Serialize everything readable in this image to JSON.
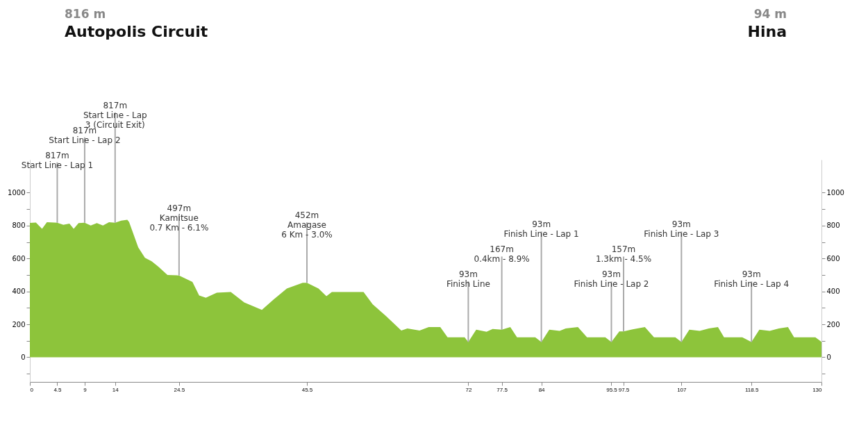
{
  "chart_data": {
    "type": "area",
    "color": "#8dc43b",
    "x": [
      0,
      1,
      2,
      2.8,
      4,
      4.5,
      5.5,
      6.5,
      7.2,
      8,
      9,
      10,
      11,
      12,
      13,
      14,
      15,
      16,
      16.3,
      17.8,
      18.9,
      20,
      21.1,
      22.6,
      24.5,
      26.7,
      27.8,
      28.9,
      30.7,
      33,
      35.2,
      38.1,
      40,
      42.2,
      44.8,
      45.5,
      47.4,
      48.7,
      49.6,
      52.2,
      54.8,
      56.3,
      58.5,
      61,
      62,
      64,
      65.5,
      67.4,
      68.6,
      71.4,
      72,
      73.3,
      75,
      76,
      77.5,
      78.9,
      80,
      83,
      84,
      85.3,
      87,
      88,
      90,
      91.5,
      94.5,
      95.5,
      96.8,
      97.5,
      99,
      101,
      102.5,
      106,
      107,
      108.3,
      110,
      111.5,
      113,
      114,
      117,
      118.5,
      119.8,
      121.5,
      123,
      124.5,
      125.5,
      129,
      130
    ],
    "values": [
      816,
      818,
      780,
      820,
      818,
      817,
      805,
      812,
      780,
      815,
      817,
      800,
      815,
      800,
      820,
      817,
      830,
      835,
      821,
      667,
      604,
      583,
      550,
      500,
      497,
      458,
      375,
      362,
      392,
      396,
      333,
      288,
      350,
      417,
      452,
      452,
      417,
      371,
      396,
      396,
      396,
      321,
      250,
      162,
      175,
      162,
      183,
      183,
      121,
      121,
      93,
      167,
      155,
      172,
      167,
      183,
      121,
      121,
      93,
      167,
      160,
      175,
      183,
      121,
      121,
      93,
      157,
      157,
      170,
      183,
      121,
      121,
      93,
      167,
      160,
      175,
      183,
      121,
      121,
      93,
      167,
      160,
      175,
      183,
      121,
      121,
      94
    ],
    "xlim": [
      0,
      130
    ],
    "xticks": [
      0,
      4.5,
      9,
      14,
      24.5,
      45.5,
      72,
      77.5,
      84,
      95.5,
      97.5,
      107,
      118.5,
      130
    ],
    "ylim": [
      -150,
      1200
    ],
    "yticks": [
      {
        "value": -100,
        "label": null
      },
      0,
      {
        "value": 100,
        "label": null
      },
      200,
      {
        "value": 300,
        "label": null
      },
      400,
      {
        "value": 500,
        "label": null
      },
      600,
      {
        "value": 700,
        "label": null
      },
      800,
      {
        "value": 900,
        "label": null
      },
      1000
    ],
    "y2lim": [
      -150,
      1200
    ],
    "y2ticks": [
      {
        "value": -100,
        "label": null
      },
      0,
      {
        "value": 100,
        "label": null
      },
      200,
      {
        "value": 300,
        "label": null
      },
      400,
      {
        "value": 500,
        "label": null
      },
      600,
      {
        "value": 700,
        "label": null
      },
      800,
      {
        "value": 900,
        "label": null
      },
      1000
    ],
    "grid": false,
    "annotations": [
      "816 m",
      "Autopolis Circuit",
      "94 m",
      "Hina",
      {
        "text": "817m\nStart Line - Lap 1",
        "x": 4.5,
        "y": 817
      },
      {
        "text": "817m\nStart Line - Lap 2",
        "x": 9,
        "y": 817
      },
      {
        "text": "817m\nStart Line - Lap\n3 (Circuit Exit)",
        "x": 14,
        "y": 817
      },
      {
        "text": "497m\nKamitsue\n0.7 Km - 6.1%",
        "x": 24.5,
        "y": 497
      },
      {
        "text": "452m\nAmagase\n6 Km - 3.0%",
        "x": 45.5,
        "y": 452
      },
      {
        "text": "93m\nFinish Line",
        "x": 72,
        "y": 93
      },
      {
        "text": "167m\n0.4km - 8.9%",
        "x": 77.5,
        "y": 167
      },
      {
        "text": "93m\nFinish Line - Lap 1",
        "x": 84,
        "y": 93
      },
      {
        "text": "93m\nFinish Line - Lap 2",
        "x": 95.5,
        "y": 93
      },
      {
        "text": "157m\n1.3km - 4.5%",
        "x": 97.5,
        "y": 157
      },
      {
        "text": "93m\nFinish Line - Lap 3",
        "x": 107,
        "y": 93
      },
      {
        "text": "93m\nFinish Line - Lap 4",
        "x": 118.5,
        "y": 93
      }
    ]
  }
}
